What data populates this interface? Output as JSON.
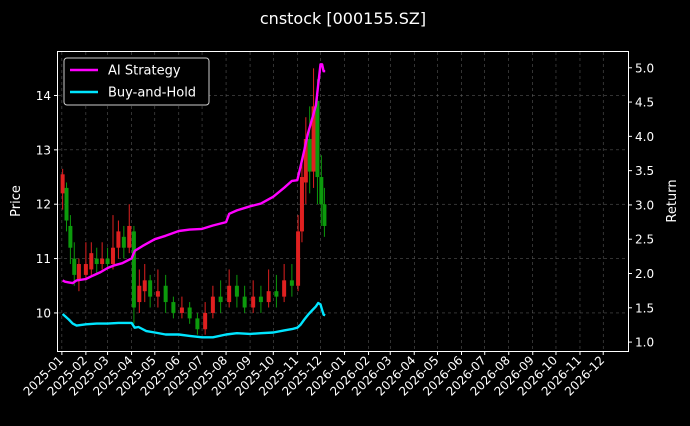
{
  "chart_data": {
    "type": "line",
    "title": "cnstock [000155.SZ]",
    "xlabel": "",
    "ylabel_left": "Price",
    "ylabel_right": "Return",
    "legend": {
      "placement": "top-left",
      "items": [
        {
          "label": "AI Strategy",
          "color": "#ff00ff"
        },
        {
          "label": "Buy-and-Hold",
          "color": "#00e5ff"
        }
      ]
    },
    "grid": true,
    "x_ticks": [
      "2025-01",
      "2025-02",
      "2025-03",
      "2025-04",
      "2025-05",
      "2025-06",
      "2025-07",
      "2025-08",
      "2025-09",
      "2025-10",
      "2025-11",
      "2025-12",
      "2026-01",
      "2026-02",
      "2026-03",
      "2026-04",
      "2026-05",
      "2026-06",
      "2026-07",
      "2026-08",
      "2026-09",
      "2026-10",
      "2026-11",
      "2026-12"
    ],
    "left_axis": {
      "ticks": [
        10,
        11,
        12,
        13,
        14
      ],
      "range": [
        9.3,
        14.8
      ]
    },
    "right_axis": {
      "ticks": [
        "1.0",
        "1.5",
        "2.0",
        "2.5",
        "3.0",
        "3.5",
        "4.0",
        "4.5",
        "5.0"
      ],
      "values": [
        1.0,
        1.5,
        2.0,
        2.5,
        3.0,
        3.5,
        4.0,
        4.5,
        5.0
      ],
      "range": [
        0.87,
        5.23
      ]
    },
    "x_range": [
      "2024-12-27",
      "2027-01-02"
    ],
    "series": [
      {
        "name": "AI Strategy",
        "axis": "right",
        "color": "#ff00ff",
        "x": [
          "2025-01-02",
          "2025-01-05",
          "2025-01-10",
          "2025-01-15",
          "2025-01-20",
          "2025-02-01",
          "2025-02-10",
          "2025-02-20",
          "2025-03-01",
          "2025-03-10",
          "2025-03-20",
          "2025-04-01",
          "2025-04-05",
          "2025-04-15",
          "2025-05-01",
          "2025-05-15",
          "2025-06-01",
          "2025-06-15",
          "2025-07-01",
          "2025-07-15",
          "2025-08-01",
          "2025-08-05",
          "2025-08-15",
          "2025-09-01",
          "2025-09-15",
          "2025-10-01",
          "2025-10-15",
          "2025-10-25",
          "2025-11-01",
          "2025-11-05",
          "2025-11-10",
          "2025-11-15",
          "2025-11-20",
          "2025-11-25",
          "2025-11-28",
          "2025-12-01",
          "2025-12-03",
          "2025-12-05",
          "2025-12-07"
        ],
        "y": [
          1.9,
          1.88,
          1.87,
          1.86,
          1.9,
          1.92,
          1.97,
          2.02,
          2.08,
          2.12,
          2.15,
          2.22,
          2.33,
          2.4,
          2.5,
          2.55,
          2.62,
          2.64,
          2.65,
          2.7,
          2.75,
          2.87,
          2.92,
          2.98,
          3.02,
          3.12,
          3.25,
          3.35,
          3.36,
          3.55,
          3.8,
          4.05,
          4.25,
          4.45,
          4.75,
          5.05,
          5.05,
          4.95,
          4.95
        ]
      },
      {
        "name": "Buy-and-Hold",
        "axis": "right",
        "color": "#00e5ff",
        "x": [
          "2025-01-02",
          "2025-01-10",
          "2025-01-15",
          "2025-01-20",
          "2025-02-01",
          "2025-02-15",
          "2025-03-01",
          "2025-03-15",
          "2025-04-01",
          "2025-04-05",
          "2025-04-10",
          "2025-04-20",
          "2025-05-01",
          "2025-05-15",
          "2025-06-01",
          "2025-06-15",
          "2025-07-01",
          "2025-07-15",
          "2025-08-01",
          "2025-08-15",
          "2025-09-01",
          "2025-09-15",
          "2025-10-01",
          "2025-10-15",
          "2025-10-25",
          "2025-11-01",
          "2025-11-05",
          "2025-11-10",
          "2025-11-15",
          "2025-11-20",
          "2025-11-25",
          "2025-11-28",
          "2025-12-01",
          "2025-12-03",
          "2025-12-05",
          "2025-12-07"
        ],
        "y": [
          1.41,
          1.33,
          1.27,
          1.24,
          1.26,
          1.27,
          1.27,
          1.28,
          1.28,
          1.21,
          1.22,
          1.16,
          1.14,
          1.11,
          1.11,
          1.09,
          1.07,
          1.07,
          1.11,
          1.13,
          1.12,
          1.13,
          1.14,
          1.17,
          1.19,
          1.21,
          1.25,
          1.33,
          1.4,
          1.46,
          1.52,
          1.57,
          1.55,
          1.47,
          1.4,
          1.39
        ]
      }
    ],
    "price_candles": [
      {
        "x": "2025-01-02",
        "open": 12.2,
        "close": 12.55,
        "high": 12.65,
        "low": 11.9
      },
      {
        "x": "2025-01-07",
        "open": 12.3,
        "close": 11.7,
        "high": 12.4,
        "low": 11.5
      },
      {
        "x": "2025-01-12",
        "open": 11.6,
        "close": 11.2,
        "high": 11.8,
        "low": 10.9
      },
      {
        "x": "2025-01-17",
        "open": 11.0,
        "close": 10.7,
        "high": 11.3,
        "low": 10.5
      },
      {
        "x": "2025-01-23",
        "open": 10.6,
        "close": 10.9,
        "high": 11.0,
        "low": 10.4
      },
      {
        "x": "2025-02-01",
        "open": 10.7,
        "close": 10.9,
        "high": 11.3,
        "low": 10.6
      },
      {
        "x": "2025-02-08",
        "open": 10.8,
        "close": 11.1,
        "high": 11.3,
        "low": 10.7
      },
      {
        "x": "2025-02-15",
        "open": 11.0,
        "close": 10.9,
        "high": 11.2,
        "low": 10.7
      },
      {
        "x": "2025-02-22",
        "open": 10.9,
        "close": 11.0,
        "high": 11.3,
        "low": 10.8
      },
      {
        "x": "2025-03-01",
        "open": 11.0,
        "close": 10.9,
        "high": 11.2,
        "low": 10.8
      },
      {
        "x": "2025-03-08",
        "open": 10.9,
        "close": 11.2,
        "high": 11.8,
        "low": 10.8
      },
      {
        "x": "2025-03-15",
        "open": 11.2,
        "close": 11.5,
        "high": 11.7,
        "low": 11.0
      },
      {
        "x": "2025-03-22",
        "open": 11.4,
        "close": 11.2,
        "high": 11.6,
        "low": 11.0
      },
      {
        "x": "2025-03-29",
        "open": 11.2,
        "close": 11.6,
        "high": 12.0,
        "low": 11.1
      },
      {
        "x": "2025-04-04",
        "open": 11.5,
        "close": 10.1,
        "high": 11.6,
        "low": 9.8
      },
      {
        "x": "2025-04-11",
        "open": 10.2,
        "close": 10.5,
        "high": 10.8,
        "low": 10.0
      },
      {
        "x": "2025-04-18",
        "open": 10.4,
        "close": 10.6,
        "high": 10.9,
        "low": 10.2
      },
      {
        "x": "2025-04-25",
        "open": 10.6,
        "close": 10.3,
        "high": 10.7,
        "low": 10.1
      },
      {
        "x": "2025-05-05",
        "open": 10.3,
        "close": 10.4,
        "high": 10.8,
        "low": 10.1
      },
      {
        "x": "2025-05-15",
        "open": 10.5,
        "close": 10.2,
        "high": 10.7,
        "low": 10.0
      },
      {
        "x": "2025-05-25",
        "open": 10.2,
        "close": 10.0,
        "high": 10.3,
        "low": 9.9
      },
      {
        "x": "2025-06-05",
        "open": 10.0,
        "close": 10.1,
        "high": 10.3,
        "low": 9.9
      },
      {
        "x": "2025-06-15",
        "open": 10.1,
        "close": 9.9,
        "high": 10.2,
        "low": 9.8
      },
      {
        "x": "2025-06-25",
        "open": 9.9,
        "close": 9.7,
        "high": 10.0,
        "low": 9.6
      },
      {
        "x": "2025-07-05",
        "open": 9.7,
        "close": 10.0,
        "high": 10.2,
        "low": 9.6
      },
      {
        "x": "2025-07-15",
        "open": 10.0,
        "close": 10.3,
        "high": 10.5,
        "low": 9.9
      },
      {
        "x": "2025-07-25",
        "open": 10.3,
        "close": 10.2,
        "high": 10.6,
        "low": 10.0
      },
      {
        "x": "2025-08-05",
        "open": 10.2,
        "close": 10.5,
        "high": 10.8,
        "low": 10.1
      },
      {
        "x": "2025-08-15",
        "open": 10.5,
        "close": 10.3,
        "high": 10.7,
        "low": 10.1
      },
      {
        "x": "2025-08-25",
        "open": 10.3,
        "close": 10.1,
        "high": 10.5,
        "low": 10.0
      },
      {
        "x": "2025-09-05",
        "open": 10.1,
        "close": 10.3,
        "high": 10.6,
        "low": 10.0
      },
      {
        "x": "2025-09-15",
        "open": 10.3,
        "close": 10.2,
        "high": 10.5,
        "low": 10.0
      },
      {
        "x": "2025-09-25",
        "open": 10.2,
        "close": 10.4,
        "high": 10.8,
        "low": 10.1
      },
      {
        "x": "2025-10-05",
        "open": 10.4,
        "close": 10.3,
        "high": 10.7,
        "low": 10.1
      },
      {
        "x": "2025-10-15",
        "open": 10.3,
        "close": 10.6,
        "high": 10.9,
        "low": 10.2
      },
      {
        "x": "2025-10-25",
        "open": 10.6,
        "close": 10.5,
        "high": 10.9,
        "low": 10.3
      },
      {
        "x": "2025-11-02",
        "open": 10.5,
        "close": 11.5,
        "high": 11.8,
        "low": 10.4
      },
      {
        "x": "2025-11-07",
        "open": 11.5,
        "close": 12.5,
        "high": 12.8,
        "low": 11.3
      },
      {
        "x": "2025-11-12",
        "open": 12.4,
        "close": 13.2,
        "high": 13.6,
        "low": 12.0
      },
      {
        "x": "2025-11-17",
        "open": 13.2,
        "close": 12.6,
        "high": 13.8,
        "low": 12.2
      },
      {
        "x": "2025-11-22",
        "open": 12.6,
        "close": 13.8,
        "high": 14.5,
        "low": 12.3
      },
      {
        "x": "2025-11-27",
        "open": 13.9,
        "close": 12.5,
        "high": 14.3,
        "low": 12.0
      },
      {
        "x": "2025-12-02",
        "open": 12.5,
        "close": 12.0,
        "high": 12.9,
        "low": 11.6
      },
      {
        "x": "2025-12-06",
        "open": 12.0,
        "close": 11.6,
        "high": 12.3,
        "low": 11.4
      }
    ]
  }
}
